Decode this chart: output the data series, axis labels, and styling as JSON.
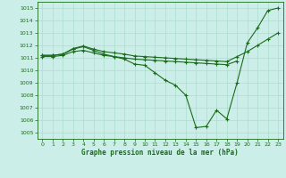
{
  "xlabel": "Graphe pression niveau de la mer (hPa)",
  "xlim": [
    -0.5,
    23.5
  ],
  "ylim": [
    1004.5,
    1015.5
  ],
  "yticks": [
    1005,
    1006,
    1007,
    1008,
    1009,
    1010,
    1011,
    1012,
    1013,
    1014,
    1015
  ],
  "xticks": [
    0,
    1,
    2,
    3,
    4,
    5,
    6,
    7,
    8,
    9,
    10,
    11,
    12,
    13,
    14,
    15,
    16,
    17,
    18,
    19,
    20,
    21,
    22,
    23
  ],
  "bg_color": "#cceee8",
  "grid_color": "#aaddcc",
  "line_color": "#1a6b1a",
  "series": [
    {
      "x": [
        0,
        1,
        2,
        3,
        4,
        5,
        6,
        7,
        8,
        9,
        10,
        11,
        12,
        13,
        14,
        15,
        16,
        17,
        18,
        19,
        20,
        21,
        22,
        23
      ],
      "y": [
        1011.2,
        1011.2,
        1011.3,
        1011.7,
        1011.9,
        1011.6,
        1011.3,
        1011.1,
        1010.9,
        1010.5,
        1010.4,
        1009.8,
        1009.2,
        1008.8,
        1008.0,
        1005.4,
        1005.5,
        1006.8,
        1006.1,
        1009.0,
        1012.2,
        1013.4,
        1014.8,
        1015.0
      ]
    },
    {
      "x": [
        0,
        1,
        2,
        3,
        4,
        5,
        6,
        7,
        8,
        9,
        10,
        11,
        12,
        13,
        14,
        15,
        16,
        17,
        18,
        19
      ],
      "y": [
        1011.1,
        1011.1,
        1011.2,
        1011.5,
        1011.6,
        1011.4,
        1011.2,
        1011.1,
        1011.0,
        1010.9,
        1010.85,
        1010.8,
        1010.75,
        1010.7,
        1010.65,
        1010.6,
        1010.55,
        1010.5,
        1010.45,
        1010.75
      ]
    },
    {
      "x": [
        0,
        1,
        2,
        3,
        4,
        5,
        6,
        7,
        8,
        9,
        10,
        11,
        12,
        13,
        14,
        15,
        16,
        17,
        18,
        19,
        20,
        21,
        22,
        23
      ],
      "y": [
        1011.2,
        1011.2,
        1011.3,
        1011.75,
        1011.95,
        1011.7,
        1011.5,
        1011.4,
        1011.3,
        1011.15,
        1011.1,
        1011.05,
        1011.0,
        1010.95,
        1010.9,
        1010.85,
        1010.8,
        1010.75,
        1010.7,
        1011.1,
        1011.5,
        1012.0,
        1012.5,
        1013.0
      ]
    }
  ]
}
